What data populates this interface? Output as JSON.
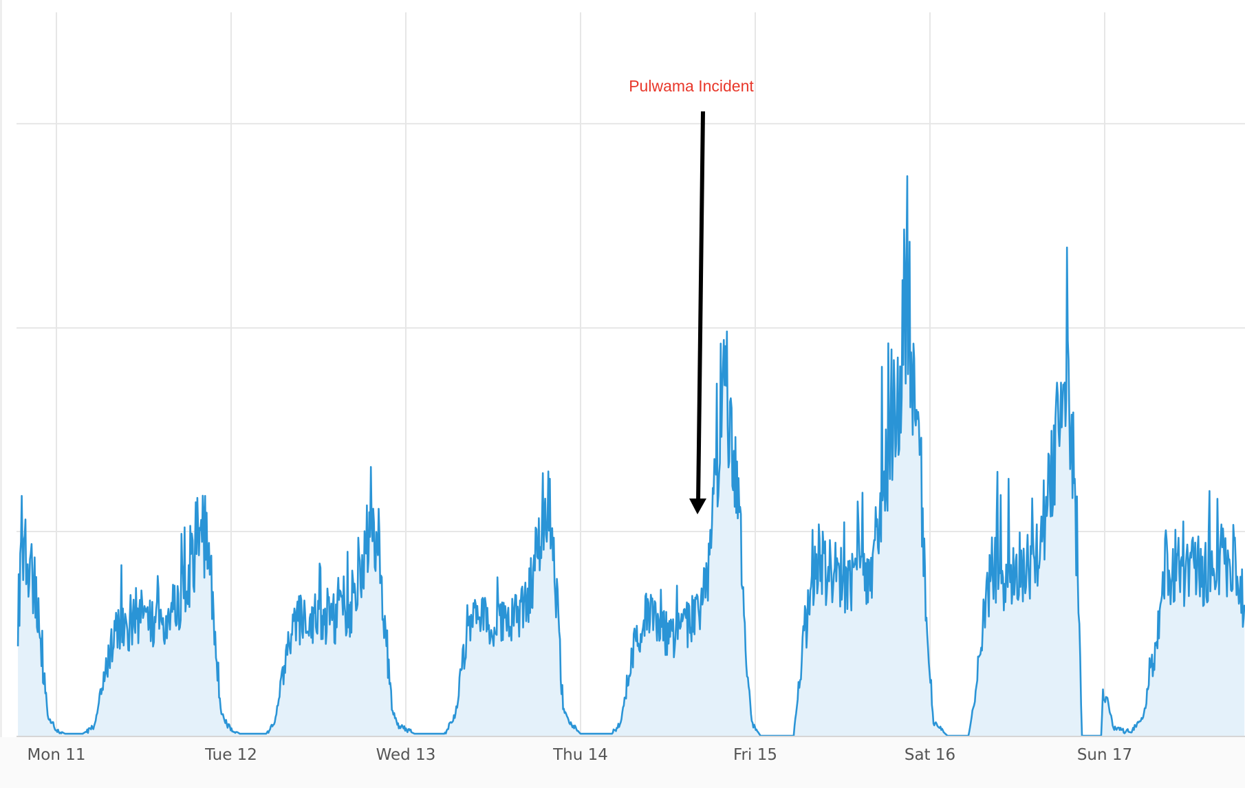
{
  "chart_data": {
    "type": "area",
    "title": "",
    "xlabel": "",
    "ylabel": "",
    "x_unit": "days from Mon 11 00:00",
    "xlim": [
      -0.22,
      6.8
    ],
    "ylim": [
      0,
      100
    ],
    "grid": true,
    "legend": "none",
    "x_ticks": [
      {
        "x": 0,
        "label": "Mon 11"
      },
      {
        "x": 1,
        "label": "Tue 12"
      },
      {
        "x": 2,
        "label": "Wed 13"
      },
      {
        "x": 3,
        "label": "Thu 14"
      },
      {
        "x": 4,
        "label": "Fri 15"
      },
      {
        "x": 5,
        "label": "Sat 16"
      },
      {
        "x": 6,
        "label": "Sun 17"
      }
    ],
    "y_gridlines": [
      31.2,
      62.3,
      93.5
    ],
    "colors": {
      "line": "#2a94d6",
      "fill": "#e4f1fa",
      "grid": "#e6e6e6",
      "annotation": "#e8372a",
      "arrow": "#000000"
    },
    "annotation": {
      "text": "Pulwama Incident",
      "x": 3.67,
      "y": 34
    },
    "series": [
      {
        "points": [
          [
            -0.22,
            17.5
          ],
          [
            -0.19,
            30
          ],
          [
            -0.16,
            26
          ],
          [
            -0.12,
            22
          ],
          [
            -0.09,
            14
          ],
          [
            -0.05,
            3
          ],
          [
            0.0,
            1
          ],
          [
            0.05,
            0.3
          ],
          [
            0.15,
            0.3
          ],
          [
            0.22,
            1.5
          ],
          [
            0.28,
            10
          ],
          [
            0.35,
            17
          ],
          [
            0.42,
            16
          ],
          [
            0.5,
            18
          ],
          [
            0.58,
            17
          ],
          [
            0.65,
            17
          ],
          [
            0.72,
            22
          ],
          [
            0.78,
            26
          ],
          [
            0.82,
            32
          ],
          [
            0.86,
            30
          ],
          [
            0.9,
            17
          ],
          [
            0.94,
            4
          ],
          [
            0.98,
            1.5
          ],
          [
            1.05,
            0.3
          ],
          [
            1.2,
            0.3
          ],
          [
            1.25,
            2
          ],
          [
            1.3,
            10
          ],
          [
            1.38,
            18
          ],
          [
            1.45,
            17
          ],
          [
            1.52,
            17
          ],
          [
            1.6,
            18
          ],
          [
            1.68,
            19
          ],
          [
            1.75,
            24
          ],
          [
            1.8,
            34
          ],
          [
            1.84,
            30
          ],
          [
            1.88,
            17
          ],
          [
            1.92,
            4
          ],
          [
            1.96,
            1.5
          ],
          [
            2.05,
            0.3
          ],
          [
            2.22,
            0.3
          ],
          [
            2.28,
            3
          ],
          [
            2.33,
            12
          ],
          [
            2.4,
            18
          ],
          [
            2.48,
            17
          ],
          [
            2.56,
            17
          ],
          [
            2.64,
            18
          ],
          [
            2.72,
            22
          ],
          [
            2.78,
            33
          ],
          [
            2.82,
            35
          ],
          [
            2.86,
            22
          ],
          [
            2.9,
            4
          ],
          [
            2.94,
            2
          ],
          [
            3.0,
            0.3
          ],
          [
            3.18,
            0.3
          ],
          [
            3.23,
            2
          ],
          [
            3.3,
            13
          ],
          [
            3.38,
            19
          ],
          [
            3.46,
            16
          ],
          [
            3.53,
            15
          ],
          [
            3.6,
            17
          ],
          [
            3.67,
            18
          ],
          [
            3.72,
            22
          ],
          [
            3.78,
            40
          ],
          [
            3.82,
            60
          ],
          [
            3.86,
            48
          ],
          [
            3.9,
            42
          ],
          [
            3.94,
            15
          ],
          [
            3.98,
            2
          ],
          [
            4.03,
            0
          ],
          [
            4.22,
            0
          ],
          [
            4.28,
            15
          ],
          [
            4.35,
            27
          ],
          [
            4.45,
            24
          ],
          [
            4.55,
            24
          ],
          [
            4.65,
            23
          ],
          [
            4.72,
            35
          ],
          [
            4.78,
            45
          ],
          [
            4.82,
            52
          ],
          [
            4.87,
            70
          ],
          [
            4.91,
            55
          ],
          [
            4.95,
            38
          ],
          [
            4.98,
            15
          ],
          [
            5.02,
            2
          ],
          [
            5.1,
            0
          ],
          [
            5.22,
            0
          ],
          [
            5.28,
            10
          ],
          [
            5.35,
            26
          ],
          [
            5.45,
            24
          ],
          [
            5.55,
            24
          ],
          [
            5.62,
            28
          ],
          [
            5.7,
            40
          ],
          [
            5.75,
            48
          ],
          [
            5.78,
            54
          ],
          [
            5.82,
            42
          ],
          [
            5.85,
            22
          ],
          [
            5.87,
            0
          ],
          [
            5.98,
            0
          ],
          [
            5.99,
            7
          ],
          [
            6.02,
            5
          ],
          [
            6.05,
            1.2
          ],
          [
            6.15,
            0.5
          ],
          [
            6.22,
            3
          ],
          [
            6.28,
            12
          ],
          [
            6.35,
            26
          ],
          [
            6.45,
            25
          ],
          [
            6.55,
            25
          ],
          [
            6.65,
            27
          ],
          [
            6.75,
            27
          ],
          [
            6.8,
            20
          ]
        ]
      }
    ]
  }
}
